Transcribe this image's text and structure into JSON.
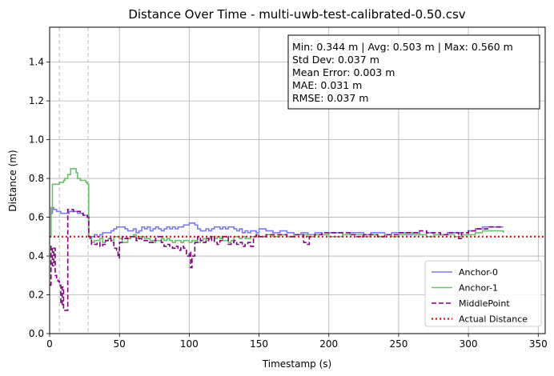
{
  "chart_data": {
    "type": "line",
    "title": "Distance Over Time - multi-uwb-test-calibrated-0.50.csv",
    "xlabel": "Timestamp (s)",
    "ylabel": "Distance (m)",
    "xlim": [
      0,
      355
    ],
    "ylim": [
      0,
      1.58
    ],
    "xticks": [
      0,
      50,
      100,
      150,
      200,
      250,
      300,
      350
    ],
    "xtick_labels": [
      "0",
      "50",
      "100",
      "150",
      "200",
      "250",
      "300",
      "350"
    ],
    "yticks": [
      0.0,
      0.2,
      0.4,
      0.6,
      0.8,
      1.0,
      1.2,
      1.4
    ],
    "ytick_labels": [
      "0.0",
      "0.2",
      "0.4",
      "0.6",
      "0.8",
      "1.0",
      "1.2",
      "1.4"
    ],
    "grid": true,
    "legend_position": "lower-right",
    "vertical_markers": [
      7,
      27.5
    ],
    "stats_box": [
      "Min: 0.344 m | Avg: 0.503 m | Max: 0.560 m",
      "Std Dev: 0.037 m",
      "Mean Error: 0.003 m",
      "MAE: 0.031 m",
      "RMSE: 0.037 m"
    ],
    "series": [
      {
        "name": "Anchor-0",
        "color": "#7b7bf0",
        "style": "solid",
        "x": [
          0,
          1,
          2,
          3,
          4,
          5,
          6,
          7,
          8,
          10,
          12,
          14,
          16,
          18,
          20,
          22,
          24,
          26,
          27,
          28,
          29,
          30,
          32,
          34,
          36,
          38,
          40,
          42,
          44,
          46,
          48,
          50,
          52,
          54,
          56,
          58,
          60,
          62,
          64,
          66,
          68,
          70,
          72,
          74,
          76,
          78,
          80,
          82,
          84,
          86,
          88,
          90,
          92,
          94,
          96,
          98,
          100,
          102,
          104,
          106,
          108,
          110,
          112,
          114,
          116,
          118,
          120,
          122,
          124,
          126,
          128,
          130,
          132,
          134,
          136,
          138,
          140,
          142,
          144,
          146,
          148,
          150,
          155,
          160,
          165,
          170,
          175,
          180,
          185,
          190,
          195,
          200,
          205,
          210,
          215,
          220,
          225,
          230,
          235,
          240,
          245,
          250,
          255,
          260,
          265,
          270,
          275,
          280,
          285,
          290,
          295,
          300,
          305,
          310,
          315,
          320,
          325
        ],
        "y": [
          0.5,
          0.62,
          0.65,
          0.64,
          0.64,
          0.63,
          0.63,
          0.63,
          0.62,
          0.62,
          0.62,
          0.63,
          0.63,
          0.63,
          0.62,
          0.62,
          0.61,
          0.61,
          0.6,
          0.5,
          0.49,
          0.5,
          0.51,
          0.5,
          0.51,
          0.52,
          0.52,
          0.52,
          0.53,
          0.54,
          0.55,
          0.55,
          0.55,
          0.54,
          0.53,
          0.53,
          0.54,
          0.52,
          0.53,
          0.55,
          0.54,
          0.55,
          0.53,
          0.54,
          0.55,
          0.54,
          0.53,
          0.54,
          0.55,
          0.54,
          0.55,
          0.54,
          0.55,
          0.55,
          0.56,
          0.56,
          0.57,
          0.57,
          0.56,
          0.54,
          0.53,
          0.53,
          0.54,
          0.53,
          0.54,
          0.55,
          0.55,
          0.54,
          0.55,
          0.54,
          0.55,
          0.55,
          0.54,
          0.53,
          0.54,
          0.52,
          0.53,
          0.52,
          0.53,
          0.53,
          0.52,
          0.54,
          0.53,
          0.52,
          0.53,
          0.52,
          0.51,
          0.52,
          0.51,
          0.52,
          0.51,
          0.52,
          0.52,
          0.51,
          0.52,
          0.52,
          0.51,
          0.52,
          0.52,
          0.51,
          0.52,
          0.52,
          0.51,
          0.52,
          0.51,
          0.52,
          0.51,
          0.51,
          0.52,
          0.52,
          0.51,
          0.53,
          0.54,
          0.55,
          0.55,
          0.55,
          0.55
        ]
      },
      {
        "name": "Anchor-1",
        "color": "#6abf6a",
        "style": "solid",
        "x": [
          0,
          1,
          2,
          3,
          4,
          5,
          6,
          7,
          8,
          9,
          10,
          11,
          12,
          13,
          14,
          15,
          16,
          17,
          18,
          19,
          20,
          21,
          22,
          24,
          26,
          27,
          28,
          29,
          30,
          32,
          34,
          36,
          38,
          40,
          42,
          44,
          46,
          48,
          50,
          52,
          54,
          56,
          58,
          60,
          62,
          64,
          66,
          68,
          70,
          72,
          74,
          76,
          78,
          80,
          82,
          84,
          86,
          88,
          90,
          92,
          94,
          96,
          98,
          100,
          102,
          104,
          106,
          108,
          110,
          112,
          114,
          116,
          118,
          120,
          122,
          124,
          126,
          128,
          130,
          132,
          134,
          136,
          138,
          140,
          142,
          144,
          146,
          148,
          150,
          155,
          160,
          165,
          170,
          175,
          180,
          185,
          190,
          195,
          200,
          205,
          210,
          215,
          220,
          225,
          230,
          235,
          240,
          245,
          250,
          255,
          260,
          265,
          270,
          275,
          280,
          285,
          290,
          295,
          300,
          305,
          310,
          315,
          320,
          325
        ],
        "y": [
          0.5,
          0.65,
          0.77,
          0.77,
          0.77,
          0.77,
          0.77,
          0.78,
          0.78,
          0.78,
          0.79,
          0.8,
          0.8,
          0.82,
          0.82,
          0.85,
          0.85,
          0.85,
          0.85,
          0.83,
          0.8,
          0.8,
          0.79,
          0.79,
          0.78,
          0.77,
          0.5,
          0.49,
          0.47,
          0.48,
          0.48,
          0.49,
          0.47,
          0.48,
          0.49,
          0.48,
          0.5,
          0.5,
          0.49,
          0.47,
          0.47,
          0.49,
          0.5,
          0.51,
          0.49,
          0.5,
          0.5,
          0.49,
          0.49,
          0.48,
          0.47,
          0.48,
          0.48,
          0.49,
          0.48,
          0.49,
          0.48,
          0.47,
          0.48,
          0.48,
          0.47,
          0.48,
          0.48,
          0.47,
          0.48,
          0.48,
          0.47,
          0.48,
          0.49,
          0.48,
          0.49,
          0.5,
          0.49,
          0.5,
          0.49,
          0.48,
          0.48,
          0.47,
          0.48,
          0.5,
          0.5,
          0.49,
          0.5,
          0.49,
          0.49,
          0.5,
          0.5,
          0.51,
          0.5,
          0.51,
          0.5,
          0.51,
          0.5,
          0.51,
          0.51,
          0.5,
          0.51,
          0.51,
          0.5,
          0.5,
          0.51,
          0.51,
          0.51,
          0.5,
          0.51,
          0.5,
          0.51,
          0.5,
          0.51,
          0.52,
          0.51,
          0.51,
          0.5,
          0.51,
          0.51,
          0.51,
          0.5,
          0.51,
          0.51,
          0.52,
          0.53,
          0.53,
          0.53,
          0.52
        ]
      },
      {
        "name": "MiddlePoint",
        "color": "#800080",
        "style": "dashed",
        "x": [
          0,
          1,
          2,
          3,
          4,
          5,
          6,
          7,
          8,
          9,
          10,
          11,
          12,
          13,
          14,
          15,
          16,
          17,
          18,
          20,
          22,
          24,
          26,
          27,
          28,
          29,
          30,
          32,
          34,
          36,
          38,
          40,
          42,
          44,
          46,
          48,
          49,
          50,
          52,
          54,
          56,
          58,
          60,
          62,
          64,
          66,
          68,
          70,
          72,
          74,
          76,
          78,
          80,
          82,
          84,
          86,
          88,
          90,
          92,
          94,
          96,
          98,
          100,
          101,
          102,
          104,
          106,
          108,
          110,
          112,
          114,
          116,
          118,
          120,
          122,
          124,
          126,
          128,
          130,
          132,
          134,
          136,
          138,
          140,
          142,
          144,
          146,
          148,
          150,
          155,
          160,
          165,
          170,
          175,
          180,
          182,
          184,
          186,
          190,
          195,
          200,
          205,
          210,
          215,
          220,
          225,
          230,
          235,
          240,
          245,
          250,
          255,
          260,
          265,
          270,
          275,
          280,
          285,
          290,
          293,
          295,
          300,
          305,
          310,
          315,
          320,
          325
        ],
        "y": [
          0.25,
          0.45,
          0.35,
          0.44,
          0.3,
          0.28,
          0.27,
          0.25,
          0.15,
          0.24,
          0.12,
          0.12,
          0.12,
          0.64,
          0.64,
          0.64,
          0.64,
          0.63,
          0.63,
          0.63,
          0.62,
          0.61,
          0.61,
          0.6,
          0.5,
          0.48,
          0.46,
          0.46,
          0.47,
          0.45,
          0.46,
          0.48,
          0.49,
          0.47,
          0.44,
          0.43,
          0.39,
          0.47,
          0.5,
          0.49,
          0.5,
          0.5,
          0.5,
          0.48,
          0.49,
          0.48,
          0.48,
          0.47,
          0.47,
          0.48,
          0.5,
          0.5,
          0.47,
          0.45,
          0.46,
          0.45,
          0.44,
          0.45,
          0.43,
          0.45,
          0.44,
          0.4,
          0.42,
          0.34,
          0.4,
          0.47,
          0.5,
          0.48,
          0.47,
          0.49,
          0.48,
          0.5,
          0.47,
          0.46,
          0.48,
          0.5,
          0.5,
          0.46,
          0.47,
          0.48,
          0.46,
          0.47,
          0.45,
          0.46,
          0.47,
          0.45,
          0.5,
          0.51,
          0.5,
          0.51,
          0.51,
          0.51,
          0.5,
          0.51,
          0.51,
          0.47,
          0.46,
          0.5,
          0.51,
          0.52,
          0.52,
          0.52,
          0.52,
          0.51,
          0.5,
          0.51,
          0.51,
          0.5,
          0.51,
          0.51,
          0.52,
          0.52,
          0.52,
          0.53,
          0.52,
          0.52,
          0.51,
          0.52,
          0.52,
          0.49,
          0.52,
          0.53,
          0.54,
          0.54,
          0.55,
          0.55,
          0.55
        ]
      },
      {
        "name": "Actual Distance",
        "color": "#e01010",
        "style": "dotted",
        "x": [
          0,
          355
        ],
        "y": [
          0.5,
          0.5
        ]
      }
    ]
  }
}
